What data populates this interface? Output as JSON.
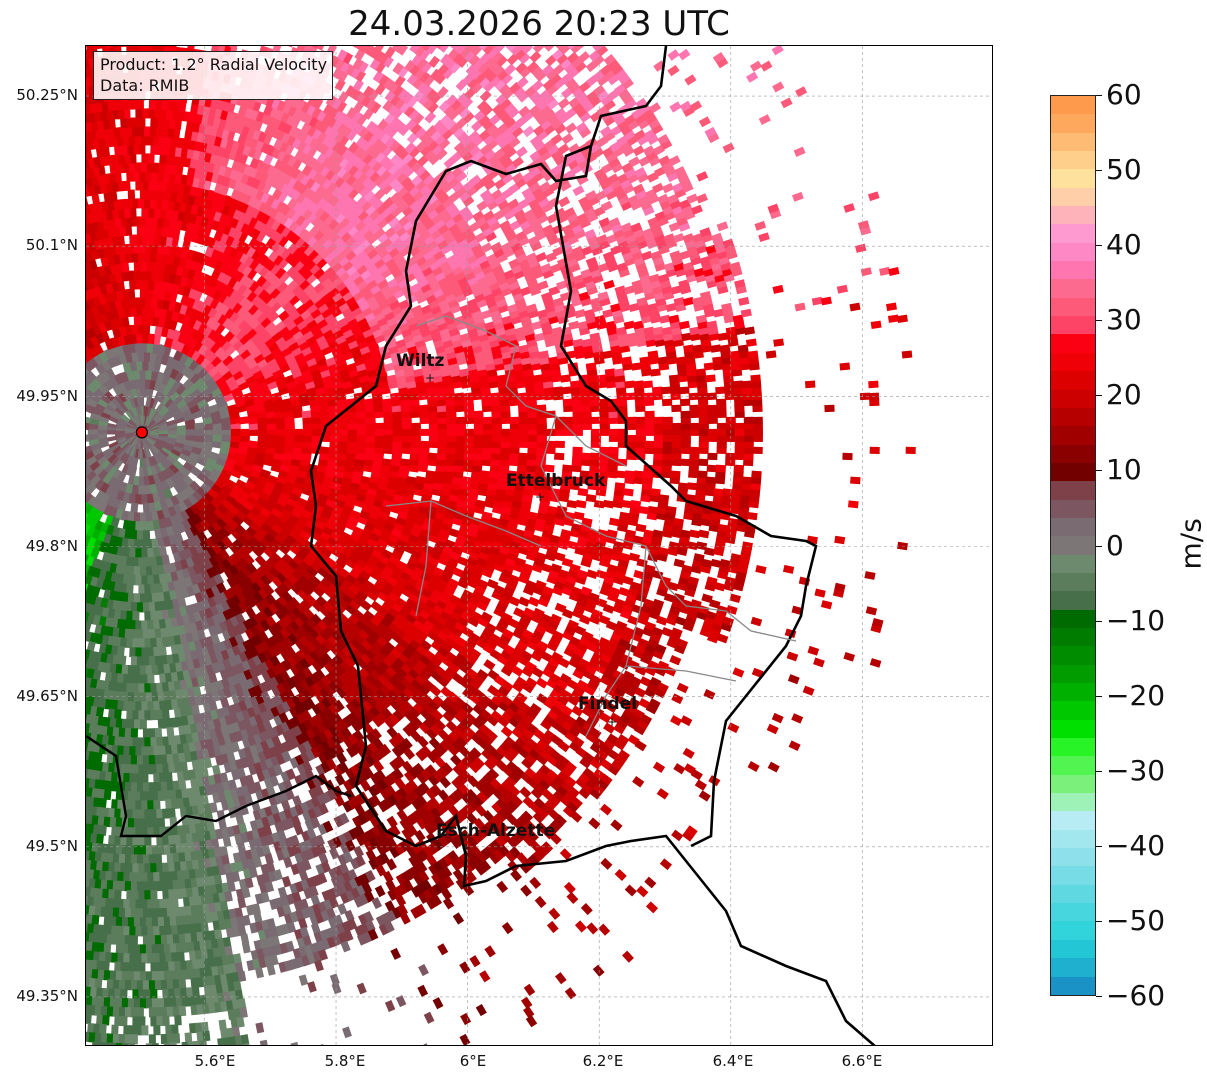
{
  "title": "24.03.2026 20:23 UTC",
  "info": {
    "product": "Product: 1.2° Radial Velocity",
    "source": "Data: RMIB"
  },
  "map": {
    "lon_range": [
      5.42,
      6.8
    ],
    "lat_range": [
      49.3,
      50.3
    ],
    "lat_ticks": [
      "50.25°N",
      "50.1°N",
      "49.95°N",
      "49.8°N",
      "49.65°N",
      "49.5°N",
      "49.35°N"
    ],
    "lon_ticks": [
      "5.6°E",
      "5.8°E",
      "6°E",
      "6.2°E",
      "6.4°E",
      "6.6°E"
    ],
    "gridlines": true,
    "radar_site": {
      "lon": 5.505,
      "lat": 49.914,
      "color": "#ff0000"
    },
    "cities": [
      {
        "name": "Wiltz",
        "lon": 5.932,
        "lat": 49.966
      },
      {
        "name": "Ettelbruck",
        "lon": 6.104,
        "lat": 49.847
      },
      {
        "name": "Findel",
        "lon": 6.204,
        "lat": 49.627
      },
      {
        "name": "Esch-Alzette",
        "lon": 5.981,
        "lat": 49.496
      }
    ]
  },
  "colorbar": {
    "label": "m/s",
    "min": -60,
    "max": 60,
    "ticks": [
      "60",
      "50",
      "40",
      "30",
      "20",
      "10",
      "0",
      "−10",
      "−20",
      "−30",
      "−40",
      "−50",
      "−60"
    ],
    "colors_top_to_bottom": [
      "#fe9a4c",
      "#fea85e",
      "#febb74",
      "#fecf8a",
      "#fee19c",
      "#fecfa8",
      "#fdb3b9",
      "#fe9ad0",
      "#fe87c6",
      "#fe75b0",
      "#fd6a90",
      "#fd5a7a",
      "#fe4466",
      "#fb0012",
      "#ef0008",
      "#dd0000",
      "#cc0000",
      "#b60000",
      "#a00000",
      "#8a0000",
      "#720000",
      "#7e4149",
      "#7c5660",
      "#7a6b73",
      "#7c7676",
      "#6e8a6e",
      "#5c7d5c",
      "#47704a",
      "#006b00",
      "#007c00",
      "#008c00",
      "#009c00",
      "#00b000",
      "#00c800",
      "#00e000",
      "#27f327",
      "#52f452",
      "#7bf07b",
      "#9ef2b8",
      "#b8ecf4",
      "#a2e6ee",
      "#8ee0ea",
      "#78dce6",
      "#60d8e2",
      "#48d6de",
      "#30d4da",
      "#22c6d4",
      "#1eb0ce",
      "#1a92c6"
    ]
  }
}
